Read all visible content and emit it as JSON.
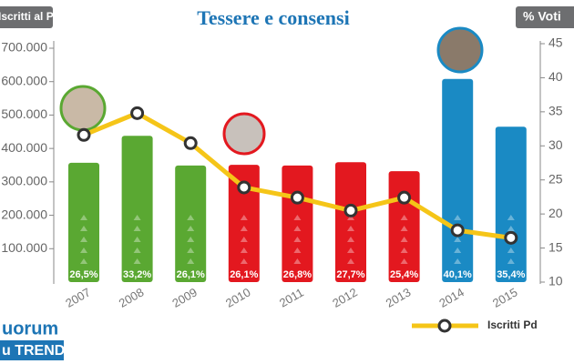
{
  "chart_data": {
    "type": "bar_line",
    "title": "Tessere e consensi",
    "ylabel": "Iscritti al Pd",
    "y2label": "% Voti",
    "categories": [
      "2007",
      "2008",
      "2009",
      "2010",
      "2011",
      "2012",
      "2013",
      "2014",
      "2015"
    ],
    "bar_colors": [
      "#5aa832",
      "#5aa832",
      "#5aa832",
      "#e3181f",
      "#e3181f",
      "#e3181f",
      "#e3181f",
      "#1a8ac4",
      "#1a8ac4"
    ],
    "series": [
      {
        "values": [
          357000,
          438000,
          349000,
          351000,
          349000,
          359000,
          332000,
          608000,
          465000
        ]
      },
      {
        "name": "Iscritti Pd",
        "color": "#f5c518",
        "axis": "y2",
        "values": [
          31.6,
          34.8,
          30.4,
          23.9,
          22.4,
          20.5,
          22.4,
          17.6,
          16.5
        ]
      },
      {
        "values": [
          26.5,
          33.2,
          26.1,
          26.1,
          26.8,
          27.7,
          25.4,
          40.1,
          35.4
        ],
        "value_labels": [
          "26,5%",
          "33,2%",
          "26,1%",
          "26,1%",
          "26,8%",
          "27,7%",
          "25,4%",
          "40,1%",
          "35,4%"
        ]
      }
    ],
    "ylim": [
      0,
      700000
    ],
    "yticks": [
      {
        "value": 100000,
        "label": "100.000"
      },
      {
        "value": 200000,
        "label": "200.000"
      },
      {
        "value": 300000,
        "label": "300.000"
      },
      {
        "value": 400000,
        "label": "400.000"
      },
      {
        "value": 500000,
        "label": "500.000"
      },
      {
        "value": 600000,
        "label": "600.000"
      },
      {
        "value": 700000,
        "label": "700.000"
      }
    ],
    "y2lim": [
      10,
      45
    ],
    "y2ticks": [
      10,
      15,
      20,
      25,
      30,
      35,
      40,
      45
    ]
  },
  "logo": {
    "line1": "uorum",
    "line2": "u TREND"
  }
}
